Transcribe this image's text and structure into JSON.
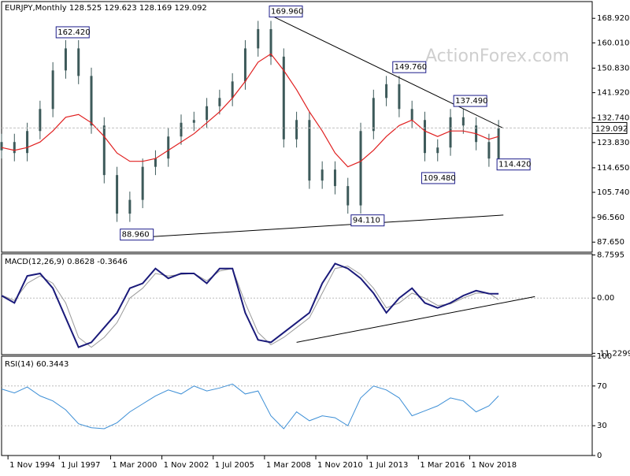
{
  "header": {
    "main": "EURJPY,Monthly  128.525 129.623 128.169 129.092",
    "macd": "MACD(12,26,9) 0.8628 -0.3646",
    "rsi": "RSI(14) 60.3443"
  },
  "watermark": "ActionForex.com",
  "colors": {
    "bars": "#3d5a5a",
    "ma": "#e02020",
    "macd": "#1a1a7a",
    "signal": "#9a9a9a",
    "rsi": "#3d8fd6",
    "label_border": "#1c1c8a",
    "last_box": "#000000"
  },
  "chart_data": [
    {
      "type": "candlestick",
      "name": "price",
      "ylim": [
        84,
        175
      ],
      "y_ticks": [
        "168.920",
        "160.010",
        "150.830",
        "141.920",
        "132.740",
        "123.830",
        "114.650",
        "105.740",
        "96.560",
        "87.650"
      ],
      "last_value": "129.092",
      "x": [
        "1994-07",
        "1995-03",
        "1995-11",
        "1996-07",
        "1997-03",
        "1997-11",
        "1998-07",
        "1999-03",
        "1999-11",
        "2000-07",
        "2001-03",
        "2001-11",
        "2002-07",
        "2003-03",
        "2003-11",
        "2004-07",
        "2005-03",
        "2005-11",
        "2006-07",
        "2007-03",
        "2007-11",
        "2008-07",
        "2009-03",
        "2009-11",
        "2010-07",
        "2011-03",
        "2011-11",
        "2012-07",
        "2013-03",
        "2013-11",
        "2014-07",
        "2015-03",
        "2015-11",
        "2016-07",
        "2017-03",
        "2017-11",
        "2018-07",
        "2019-03",
        "2019-11",
        "2020-05"
      ],
      "close": [
        124,
        120,
        128,
        136,
        150,
        158,
        148,
        130,
        112,
        98,
        103,
        115,
        118,
        126,
        131,
        132,
        137,
        140,
        146,
        158,
        165,
        155,
        125,
        132,
        110,
        114,
        108,
        101,
        128,
        140,
        145,
        136,
        132,
        120,
        122,
        133,
        130,
        124,
        118,
        129
      ],
      "ma": [
        122,
        121,
        122,
        124,
        128,
        133,
        134,
        131,
        126,
        120,
        117,
        117,
        118,
        121,
        124,
        127,
        131,
        135,
        140,
        146,
        153,
        156,
        150,
        143,
        135,
        128,
        120,
        115,
        117,
        121,
        126,
        130,
        132,
        128,
        126,
        128,
        128,
        127,
        125,
        126
      ],
      "labels": [
        {
          "text": "162.420",
          "x": "1997-06",
          "y": 162.42
        },
        {
          "text": "88.960",
          "x": "2000-10",
          "y": 88.96
        },
        {
          "text": "169.960",
          "x": "2008-07",
          "y": 169.96
        },
        {
          "text": "149.760",
          "x": "2014-12",
          "y": 149.76
        },
        {
          "text": "137.490",
          "x": "2018-02",
          "y": 137.49
        },
        {
          "text": "109.480",
          "x": "2016-06",
          "y": 109.48
        },
        {
          "text": "94.110",
          "x": "2012-10",
          "y": 94.11
        },
        {
          "text": "114.420",
          "x": "2020-05",
          "y": 114.42
        }
      ]
    },
    {
      "type": "line",
      "name": "MACD(12,26,9)",
      "ylim": [
        -11.5,
        9
      ],
      "y_ticks": [
        "8.7595",
        "0.00",
        "-11.2299"
      ],
      "x": [
        "1994-07",
        "1995-03",
        "1995-11",
        "1996-07",
        "1997-03",
        "1997-11",
        "1998-07",
        "1999-03",
        "1999-11",
        "2000-07",
        "2001-03",
        "2001-11",
        "2002-07",
        "2003-03",
        "2003-11",
        "2004-07",
        "2005-03",
        "2005-11",
        "2006-07",
        "2007-03",
        "2007-11",
        "2008-07",
        "2009-03",
        "2009-11",
        "2010-07",
        "2011-03",
        "2011-11",
        "2012-07",
        "2013-03",
        "2013-11",
        "2014-07",
        "2015-03",
        "2015-11",
        "2016-07",
        "2017-03",
        "2017-11",
        "2018-07",
        "2019-03",
        "2019-11",
        "2020-05"
      ],
      "macd": [
        0.5,
        -1,
        4.5,
        5,
        2,
        -4,
        -10,
        -9,
        -6,
        -3,
        2,
        3,
        6,
        4,
        5,
        5,
        3,
        6,
        6,
        -3,
        -8.5,
        -9,
        -7,
        -5,
        -3,
        3,
        7,
        6,
        4,
        1,
        -3,
        0,
        2,
        -1,
        -2,
        -1,
        0.5,
        1.5,
        0.9,
        0.86
      ],
      "signal": [
        0.6,
        -0.5,
        3,
        4.5,
        3,
        -1,
        -8,
        -10,
        -8,
        -5,
        0,
        2,
        5,
        4.5,
        4.8,
        5,
        3.5,
        5.5,
        6,
        -1,
        -7,
        -9.5,
        -8,
        -6,
        -4,
        1,
        6,
        6.5,
        4.8,
        2,
        -2,
        -1,
        1,
        0,
        -1.5,
        -1.2,
        0,
        1,
        1,
        -0.36
      ]
    },
    {
      "type": "line",
      "name": "RSI(14)",
      "ylim": [
        0,
        100
      ],
      "y_ticks": [
        "100",
        "70",
        "30",
        "0"
      ],
      "x": [
        "1994-07",
        "1995-03",
        "1995-11",
        "1996-07",
        "1997-03",
        "1997-11",
        "1998-07",
        "1999-03",
        "1999-11",
        "2000-07",
        "2001-03",
        "2001-11",
        "2002-07",
        "2003-03",
        "2003-11",
        "2004-07",
        "2005-03",
        "2005-11",
        "2006-07",
        "2007-03",
        "2007-11",
        "2008-07",
        "2009-03",
        "2009-11",
        "2010-07",
        "2011-03",
        "2011-11",
        "2012-07",
        "2013-03",
        "2013-11",
        "2014-07",
        "2015-03",
        "2015-11",
        "2016-07",
        "2017-03",
        "2017-11",
        "2018-07",
        "2019-03",
        "2019-11",
        "2020-05"
      ],
      "rsi": [
        67,
        63,
        69,
        60,
        55,
        46,
        32,
        28,
        27,
        33,
        44,
        52,
        60,
        66,
        62,
        70,
        65,
        68,
        72,
        62,
        65,
        40,
        27,
        44,
        35,
        40,
        38,
        30,
        58,
        70,
        66,
        58,
        40,
        45,
        50,
        58,
        55,
        44,
        50,
        60
      ]
    }
  ],
  "x_axis": {
    "labels": [
      "1 Nov 1994",
      "1 Jul 1997",
      "1 Mar 2000",
      "1 Nov 2002",
      "1 Jul 2005",
      "1 Mar 2008",
      "1 Nov 2010",
      "1 Jul 2013",
      "1 Mar 2016",
      "1 Nov 2018"
    ]
  }
}
